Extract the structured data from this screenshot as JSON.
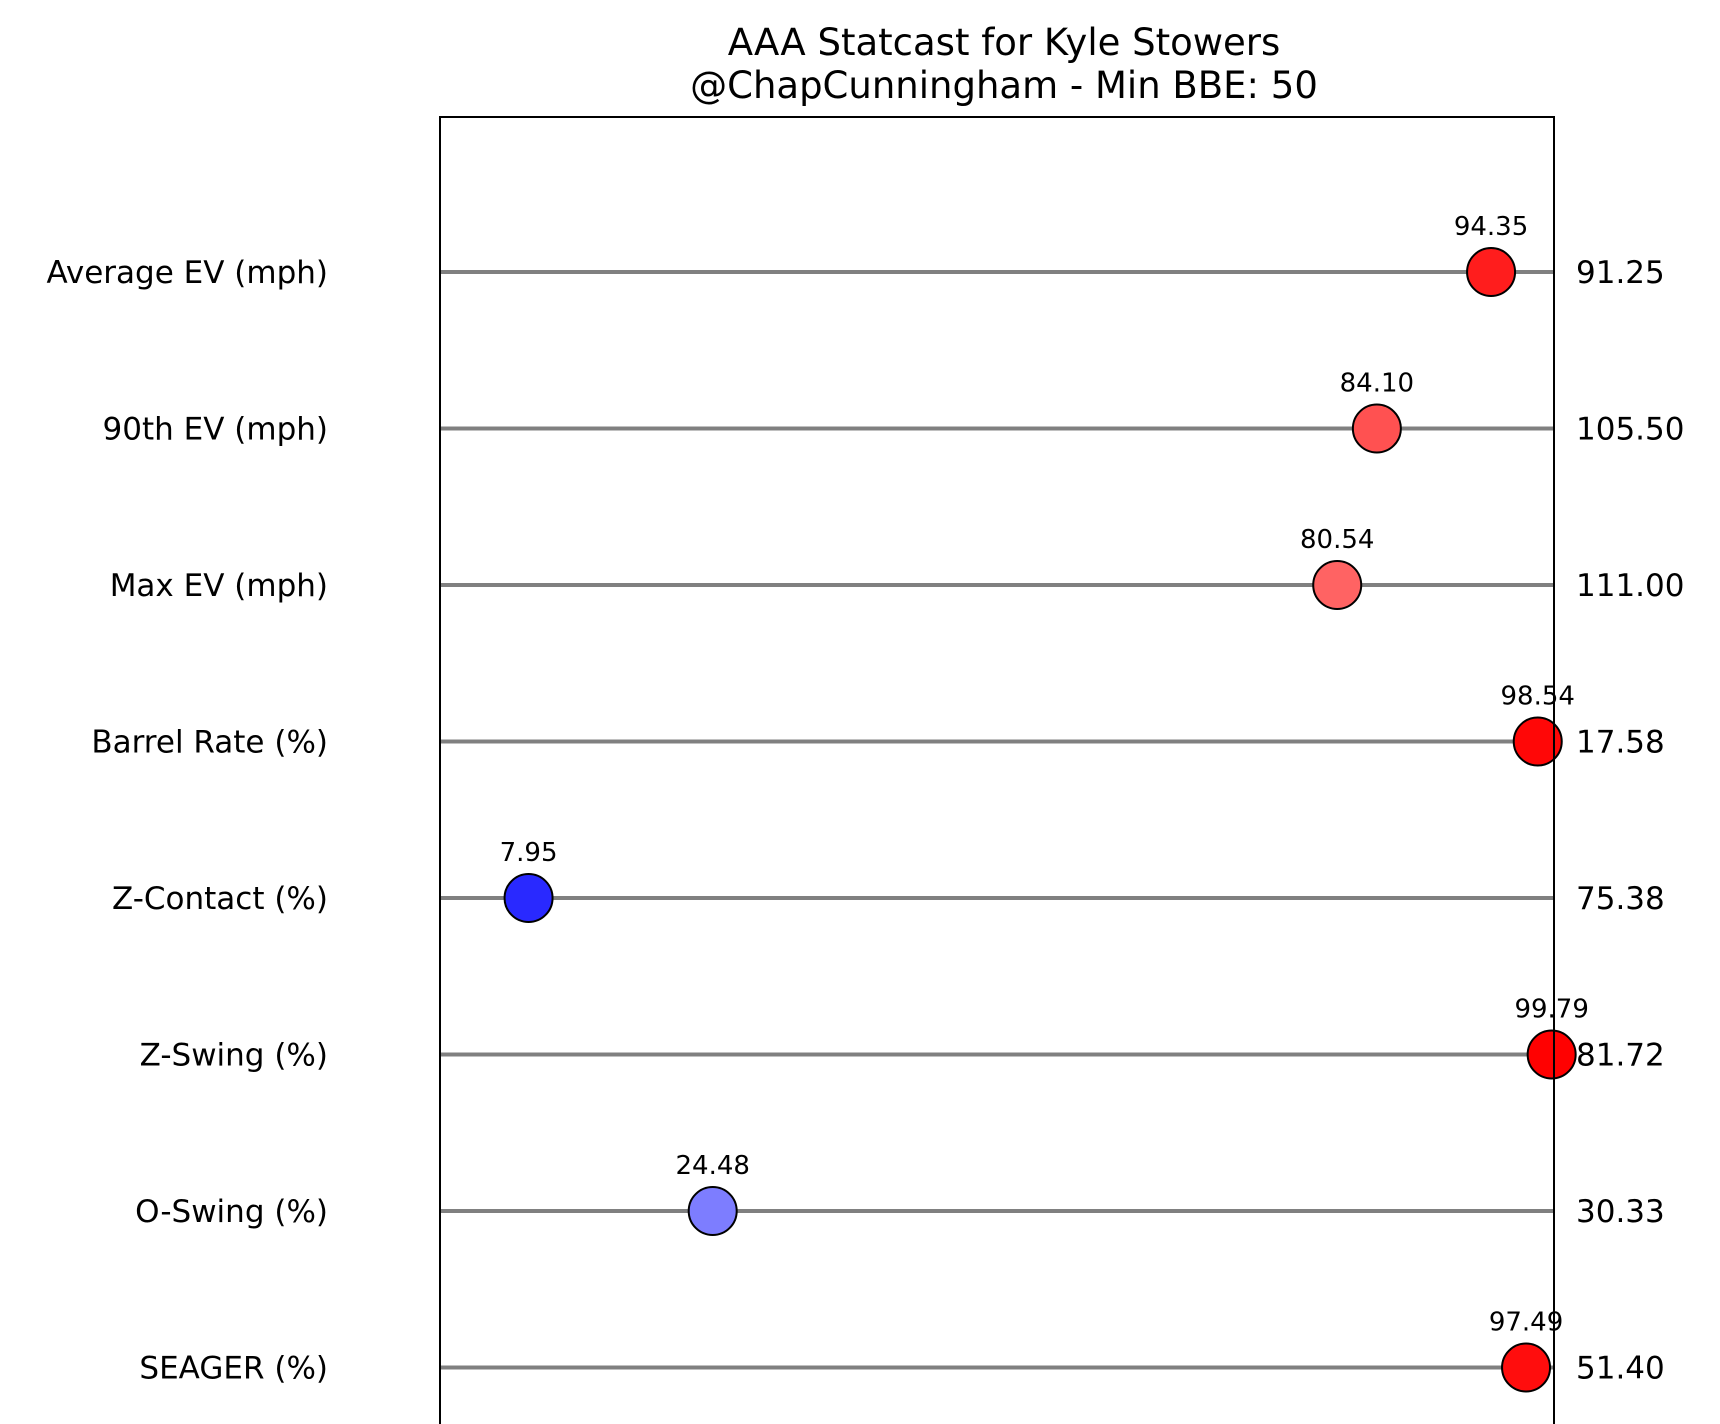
{
  "chart_data": {
    "type": "scatter",
    "title": "AAA Statcast for Kyle Stowers",
    "subtitle": "@ChapCunningham - Min BBE: 50",
    "xlabel": "",
    "ylabel": "",
    "xlim": [
      0,
      100
    ],
    "grid": false,
    "legend": "none",
    "categories": [
      "Average EV (mph)",
      "90th EV (mph)",
      "Max EV (mph)",
      "Barrel Rate (%)",
      "Z-Contact (%)",
      "Z-Swing (%)",
      "O-Swing (%)",
      "SEAGER (%)"
    ],
    "percentiles": [
      94.35,
      84.1,
      80.54,
      98.54,
      7.95,
      99.79,
      24.48,
      97.49
    ],
    "percentile_labels": [
      "94.35",
      "84.10",
      "80.54",
      "98.54",
      "7.95",
      "99.79",
      "24.48",
      "97.49"
    ],
    "raw_values": [
      "91.25",
      "105.50",
      "111.00",
      "17.58",
      "75.38",
      "81.72",
      "30.33",
      "51.40"
    ],
    "colors": {
      "point_low": "#0000ff",
      "point_high": "#ff0000",
      "point_mid": "#ffffff",
      "track": "#808080",
      "frame": "#000000",
      "marker_edge": "#000000"
    }
  }
}
